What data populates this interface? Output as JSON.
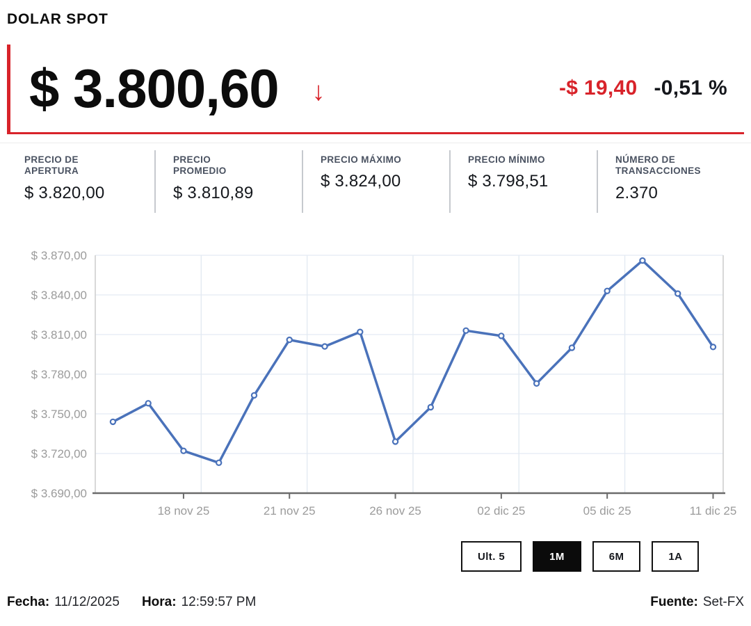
{
  "header": {
    "title": "DOLAR SPOT"
  },
  "quote": {
    "price": "$ 3.800,60",
    "direction_icon": "↓",
    "change_value": "-$ 19,40",
    "change_percent": "-0,51 %",
    "accent_color": "#d8232a"
  },
  "stats": {
    "items": [
      {
        "label": "PRECIO DE\nAPERTURA",
        "value": "$ 3.820,00"
      },
      {
        "label": "PRECIO\nPROMEDIO",
        "value": "$ 3.810,89"
      },
      {
        "label": "PRECIO MÁXIMO",
        "value": "$ 3.824,00"
      },
      {
        "label": "PRECIO MÍNIMO",
        "value": "$ 3.798,51"
      },
      {
        "label": "NÚMERO DE\nTRANSACCIONES",
        "value": "2.370"
      }
    ]
  },
  "chart_data": {
    "type": "line",
    "title": "",
    "xlabel": "",
    "ylabel": "",
    "legend": "none",
    "grid": true,
    "ylim": [
      3690,
      3870
    ],
    "series": [
      {
        "name": "DOLAR SPOT",
        "values": [
          3744,
          3758,
          3722,
          3713,
          3764,
          3806,
          3801,
          3812,
          3729,
          3755,
          3813,
          3809,
          3773,
          3800,
          3843,
          3866,
          3841,
          3800.6
        ]
      }
    ],
    "x_ticks": [
      {
        "label": "18 nov 25",
        "index": 2
      },
      {
        "label": "21 nov 25",
        "index": 5
      },
      {
        "label": "26 nov 25",
        "index": 8
      },
      {
        "label": "02 dic 25",
        "index": 11
      },
      {
        "label": "05 dic 25",
        "index": 14
      },
      {
        "label": "11 dic 25",
        "index": 17
      }
    ],
    "y_ticks": [
      {
        "label": "$ 3.870,00",
        "value": 3870
      },
      {
        "label": "$ 3.840,00",
        "value": 3840
      },
      {
        "label": "$ 3.810,00",
        "value": 3810
      },
      {
        "label": "$ 3.780,00",
        "value": 3780
      },
      {
        "label": "$ 3.750,00",
        "value": 3750
      },
      {
        "label": "$ 3.720,00",
        "value": 3720
      },
      {
        "label": "$ 3.690,00",
        "value": 3690
      }
    ],
    "colors": {
      "line": "#4a72ba",
      "marker_fill": "#ffffff",
      "grid": "#e9eef5",
      "vgrid": "#e3eaf2",
      "axis": "#6b6b6b",
      "tick_label": "#9b9b9b",
      "plot_border": "#cccccc"
    }
  },
  "controls": {
    "active_range": "1M",
    "buttons": [
      {
        "label": "Ult. 5"
      },
      {
        "label": "1M"
      },
      {
        "label": "6M"
      },
      {
        "label": "1A"
      }
    ]
  },
  "footer": {
    "date_label": "Fecha:",
    "date_value": "11/12/2025",
    "time_label": "Hora:",
    "time_value": "12:59:57 PM",
    "source_label": "Fuente:",
    "source_value": "Set-FX"
  }
}
